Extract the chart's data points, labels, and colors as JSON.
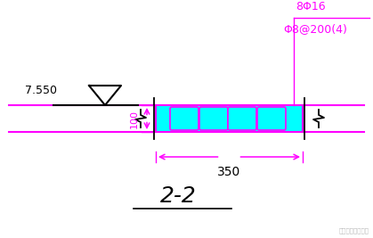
{
  "bg_color": "#ffffff",
  "magenta": "#FF00FF",
  "cyan_fill": "#00FFFF",
  "black": "#000000",
  "label_8phi16": "8Φ16",
  "label_stirrup": "Φ8@200(4)",
  "label_elevation": "7.550",
  "label_width": "350",
  "label_depth": "100",
  "label_section": "2-2",
  "fig_w": 4.19,
  "fig_h": 2.67,
  "dpi": 100
}
